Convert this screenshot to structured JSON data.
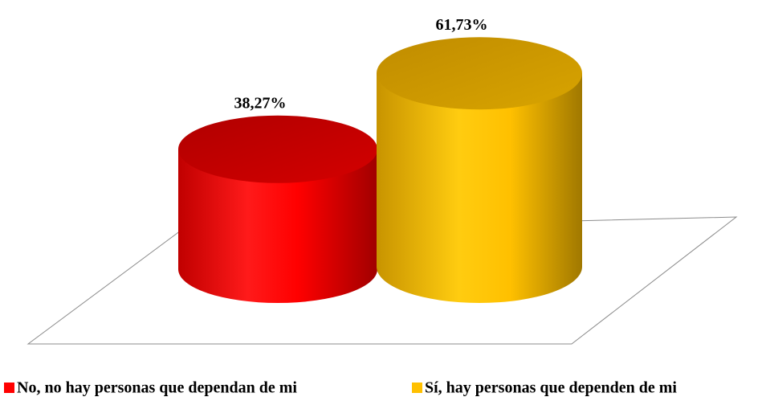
{
  "chart_data": {
    "type": "bar",
    "series": [
      {
        "name": "No, no hay personas que dependan de mi",
        "color": "#ff0000",
        "values": [
          38.27
        ],
        "value_labels": [
          "38,27%"
        ]
      },
      {
        "name": "Sí, hay personas que dependen de mi",
        "color": "#ffc000",
        "values": [
          61.73
        ],
        "value_labels": [
          "61,73%"
        ]
      }
    ]
  }
}
